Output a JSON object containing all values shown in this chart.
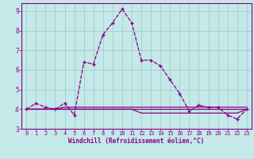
{
  "xlabel": "Windchill (Refroidissement éolien,°C)",
  "ylabel": "",
  "xlim": [
    -0.5,
    23.5
  ],
  "ylim": [
    3.0,
    9.4
  ],
  "yticks": [
    3,
    4,
    5,
    6,
    7,
    8,
    9
  ],
  "xticks": [
    0,
    1,
    2,
    3,
    4,
    5,
    6,
    7,
    8,
    9,
    10,
    11,
    12,
    13,
    14,
    15,
    16,
    17,
    18,
    19,
    20,
    21,
    22,
    23
  ],
  "bg_color": "#c5e8e8",
  "grid_color": "#9ecece",
  "line_color": "#880088",
  "dot_color": "#880088",
  "series1_y": [
    4.0,
    4.3,
    4.1,
    4.0,
    4.3,
    3.7,
    6.4,
    6.3,
    7.8,
    8.4,
    9.1,
    8.4,
    6.5,
    6.5,
    6.2,
    5.5,
    4.8,
    3.9,
    4.2,
    4.1,
    4.1,
    3.7,
    3.5,
    4.0
  ],
  "series2_y": [
    4.0,
    4.0,
    4.0,
    4.0,
    4.1,
    4.1,
    4.1,
    4.1,
    4.1,
    4.1,
    4.1,
    4.1,
    4.1,
    4.1,
    4.1,
    4.1,
    4.1,
    4.1,
    4.1,
    4.1,
    4.1,
    4.1,
    4.1,
    4.1
  ],
  "series3_y": [
    4.0,
    4.0,
    4.0,
    4.0,
    4.0,
    4.0,
    4.0,
    4.0,
    4.0,
    4.0,
    4.0,
    4.0,
    3.8,
    3.8,
    3.8,
    3.8,
    3.8,
    3.8,
    3.8,
    3.8,
    3.8,
    3.8,
    3.8,
    4.0
  ],
  "series4_y": [
    4.0,
    4.0,
    4.0,
    4.0,
    4.0,
    4.0,
    4.0,
    4.0,
    4.0,
    4.0,
    4.0,
    4.0,
    4.0,
    4.0,
    4.0,
    4.0,
    4.0,
    4.0,
    4.0,
    4.0,
    4.0,
    4.0,
    4.0,
    4.0
  ]
}
